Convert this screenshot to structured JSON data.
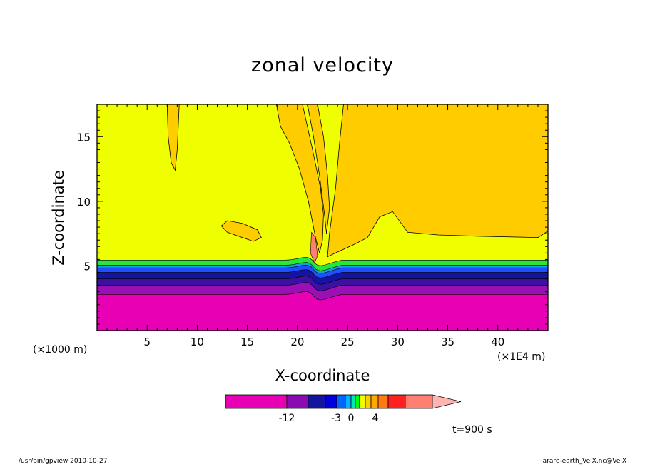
{
  "chart_data": {
    "type": "heatmap",
    "title": "zonal velocity",
    "xlabel": "X-coordinate",
    "ylabel": "Z-coordinate",
    "x_unit_left": "(×1000 m)",
    "x_unit_right": "(×1E4 m)",
    "xlim": [
      0,
      45
    ],
    "ylim": [
      0,
      17.5
    ],
    "x_ticks": [
      "5",
      "10",
      "15",
      "20",
      "25",
      "30",
      "35",
      "40"
    ],
    "y_ticks": [
      "5",
      "10",
      "15"
    ],
    "colorbar_labels": [
      "-12",
      "-3",
      "0",
      "4"
    ],
    "colorbar_colors": [
      "#e800b4",
      "#8a0ab4",
      "#1414a0",
      "#0000dc",
      "#0064ff",
      "#00b4ff",
      "#00e6b4",
      "#00ff00",
      "#f0ff00",
      "#ffcc00",
      "#ffaa00",
      "#ff7a10",
      "#ff2020",
      "#ff8070",
      "#ffb4b4"
    ],
    "layers_bottom_to_top": [
      {
        "z_top": 2.8,
        "color": "#e800b4"
      },
      {
        "z_top": 3.5,
        "color": "#9a10b4"
      },
      {
        "z_top": 4.0,
        "color": "#3c10a0"
      },
      {
        "z_top": 4.5,
        "color": "#1414a0"
      },
      {
        "z_top": 4.85,
        "color": "#1e50ff"
      },
      {
        "z_top": 5.05,
        "color": "#14a0d8"
      },
      {
        "z_top": 5.45,
        "color": "#28e63c"
      },
      {
        "z_top": 17.5,
        "color": "#f0ff00"
      }
    ],
    "annotation": "t=900 s"
  },
  "footer": {
    "left": "/usr/bin/gpview   2010-10-27",
    "right": "arare-earth_VelX.nc@VelX"
  },
  "colors": {
    "background": "#f0ff00",
    "positive": "#ffcc00"
  }
}
